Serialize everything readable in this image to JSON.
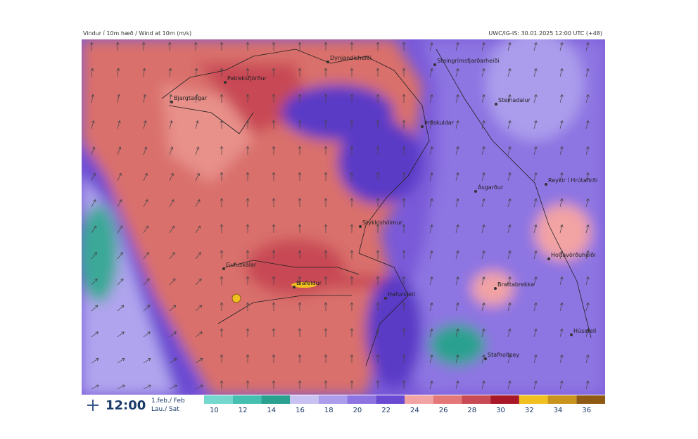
{
  "header": {
    "left": "Vindur í 10m hæð / Wind at 10m (m/s)",
    "right": "UWC/IG-IS: 30.01.2025 12:00 UTC (+48)"
  },
  "places": [
    "Dynjandisheiði",
    "Steingrímsfjarðarheiði",
    "Patreksfjörður",
    "Bjargtangar",
    "Steinadalur",
    "Þröskuldar",
    "Ásgarður",
    "Reykir í Hrútafirði",
    "Stykkishólmur",
    "Holtavörðuheiði",
    "Gufuskálar",
    "Blafeldur",
    "Hafursfell",
    "Brattabrekka",
    "Húsafell",
    "Stafholtsey"
  ],
  "time": "12:00",
  "date": "1.feb./ Feb",
  "day": "Lau./ Sat",
  "legend": {
    "values": [
      10,
      12,
      14,
      16,
      18,
      20,
      22,
      24,
      26,
      28,
      30,
      32,
      34,
      36
    ],
    "colors": [
      "#74d8cf",
      "#45bfb0",
      "#2aa190",
      "#c7c2f2",
      "#ab9cec",
      "#8d74e2",
      "#6a4ad2",
      "#f2a3a3",
      "#e47878",
      "#c84a55",
      "#a81828",
      "#f0c020",
      "#c8941e",
      "#8e5a14"
    ]
  }
}
